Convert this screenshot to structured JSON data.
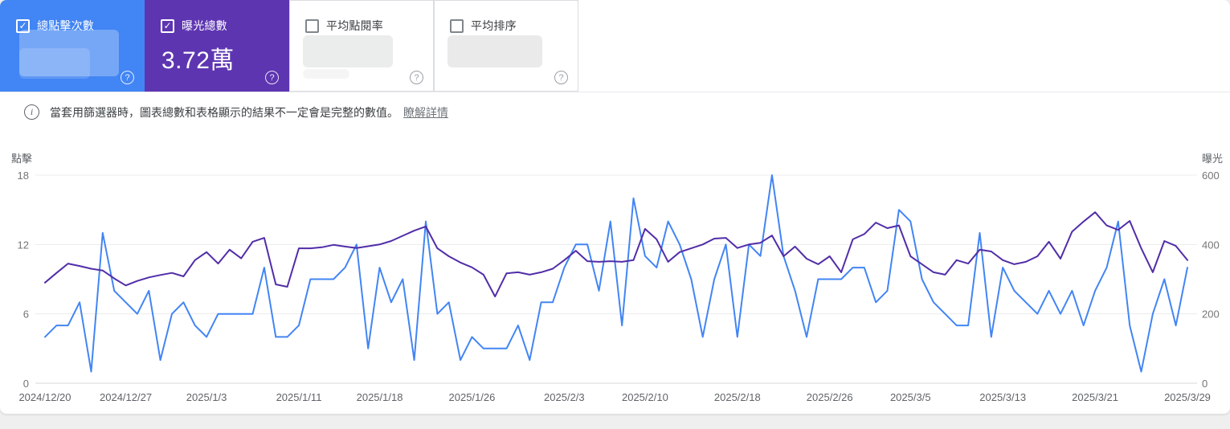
{
  "cards": [
    {
      "id": "clicks",
      "label": "總點擊次數",
      "checked": true,
      "value": null,
      "value_redacted": true,
      "bg": "#4285f4"
    },
    {
      "id": "impressions",
      "label": "曝光總數",
      "checked": true,
      "value": "3.72萬",
      "value_redacted": false,
      "bg": "#5e35b1"
    },
    {
      "id": "ctr",
      "label": "平均點閱率",
      "checked": false,
      "value": null,
      "value_redacted": true,
      "bg": "#ffffff"
    },
    {
      "id": "position",
      "label": "平均排序",
      "checked": false,
      "value": null,
      "value_redacted": true,
      "bg": "#ffffff"
    }
  ],
  "notice": {
    "text": "當套用篩選器時，圖表總數和表格顯示的結果不一定會是完整的數值。",
    "link_label": "瞭解詳情"
  },
  "icons": {
    "checked_checkbox": "✓",
    "help": "?",
    "info": "i"
  },
  "chart_data": {
    "type": "line",
    "title": "",
    "grid": true,
    "num_points": 100,
    "date_start": "2024/12/20",
    "date_end": "2025/3/29",
    "x_tick_labels": [
      "2024/12/20",
      "2024/12/27",
      "2025/1/3",
      "2025/1/11",
      "2025/1/18",
      "2025/1/26",
      "2025/2/3",
      "2025/2/10",
      "2025/2/18",
      "2025/2/26",
      "2025/3/5",
      "2025/3/13",
      "2025/3/21",
      "2025/3/29"
    ],
    "x_tick_day_offsets": [
      0,
      7,
      14,
      22,
      29,
      37,
      45,
      52,
      60,
      68,
      75,
      83,
      91,
      99
    ],
    "left_axis": {
      "label": "點擊",
      "ticks": [
        0,
        6,
        12,
        18
      ],
      "max": 18
    },
    "right_axis": {
      "label": "曝光",
      "ticks": [
        0,
        200,
        400,
        600
      ],
      "max": 600
    },
    "series": [
      {
        "id": "clicks",
        "name": "點擊",
        "axis": "left",
        "color": "#4285f4",
        "values": [
          4,
          5,
          5,
          7,
          1,
          13,
          8,
          7,
          6,
          8,
          2,
          6,
          7,
          5,
          4,
          6,
          6,
          6,
          6,
          10,
          4,
          4,
          5,
          9,
          9,
          9,
          10,
          12,
          3,
          10,
          7,
          9,
          2,
          14,
          6,
          7,
          2,
          4,
          3,
          3,
          3,
          5,
          2,
          7,
          7,
          10,
          12,
          12,
          8,
          14,
          5,
          16,
          11,
          10,
          14,
          12,
          9,
          4,
          9,
          12,
          4,
          12,
          11,
          18,
          11,
          8,
          4,
          9,
          9,
          9,
          10,
          10,
          7,
          8,
          15,
          14,
          9,
          7,
          6,
          5,
          5,
          13,
          4,
          10,
          8,
          7,
          6,
          8,
          6,
          8,
          5,
          8,
          10,
          14,
          5,
          1,
          6,
          9,
          5,
          10
        ]
      },
      {
        "id": "impressions",
        "name": "曝光",
        "axis": "right",
        "color": "#512da8",
        "values": [
          290,
          318,
          345,
          338,
          330,
          325,
          302,
          282,
          295,
          305,
          312,
          318,
          308,
          355,
          378,
          345,
          385,
          360,
          408,
          419,
          285,
          278,
          389,
          389,
          392,
          399,
          394,
          390,
          395,
          400,
          410,
          425,
          440,
          452,
          389,
          366,
          348,
          334,
          313,
          250,
          317,
          320,
          313,
          320,
          330,
          355,
          382,
          352,
          350,
          352,
          350,
          355,
          445,
          415,
          350,
          378,
          389,
          400,
          417,
          419,
          390,
          400,
          405,
          426,
          366,
          394,
          359,
          343,
          366,
          320,
          415,
          430,
          463,
          447,
          455,
          366,
          343,
          320,
          313,
          355,
          345,
          385,
          380,
          355,
          343,
          350,
          366,
          408,
          359,
          437,
          466,
          493,
          455,
          442,
          468,
          389,
          320,
          410,
          396,
          355
        ]
      }
    ]
  }
}
